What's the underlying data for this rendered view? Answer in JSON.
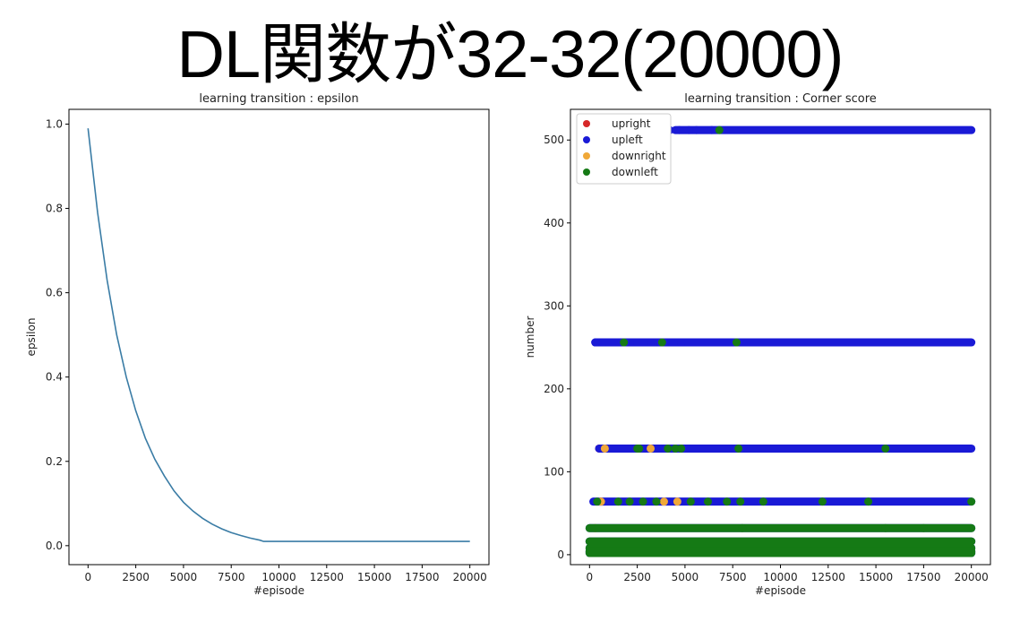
{
  "slide_title": "DL関数が32-32(20000)",
  "chart_data": [
    {
      "type": "line",
      "title": "learning transition : epsilon",
      "xlabel": "#episode",
      "ylabel": "epsilon",
      "xlim": [
        -1000,
        21000
      ],
      "ylim": [
        -0.045,
        1.035
      ],
      "xticks": [
        0,
        2500,
        5000,
        7500,
        10000,
        12500,
        15000,
        17500,
        20000
      ],
      "yticks": [
        0.0,
        0.2,
        0.4,
        0.6,
        0.8,
        1.0
      ],
      "ytick_labels": [
        "0.0",
        "0.2",
        "0.4",
        "0.6",
        "0.8",
        "1.0"
      ],
      "grid": false,
      "color": "#3a7ca5",
      "series": [
        {
          "x": [
            0,
            500,
            1000,
            1500,
            2000,
            2500,
            3000,
            3500,
            4000,
            4500,
            5000,
            5500,
            6000,
            6500,
            7000,
            7500,
            8000,
            8500,
            9000,
            9200,
            10000,
            12000,
            14000,
            16000,
            18000,
            20000
          ],
          "y": [
            0.99,
            0.79,
            0.63,
            0.5,
            0.4,
            0.32,
            0.255,
            0.205,
            0.165,
            0.13,
            0.103,
            0.082,
            0.065,
            0.051,
            0.04,
            0.031,
            0.024,
            0.018,
            0.013,
            0.01,
            0.01,
            0.01,
            0.01,
            0.01,
            0.01,
            0.01
          ]
        }
      ]
    },
    {
      "type": "scatter",
      "title": "learning transition : Corner score",
      "xlabel": "#episode",
      "ylabel": "number",
      "xlim": [
        -1000,
        21000
      ],
      "ylim": [
        -12,
        537
      ],
      "xticks": [
        0,
        2500,
        5000,
        7500,
        10000,
        12500,
        15000,
        17500,
        20000
      ],
      "yticks": [
        0,
        100,
        200,
        300,
        400,
        500
      ],
      "ytick_labels": [
        "0",
        "100",
        "200",
        "300",
        "400",
        "500"
      ],
      "grid": false,
      "legend_position": "top-left",
      "legend": [
        "upright",
        "upleft",
        "downright",
        "downleft"
      ],
      "series": [
        {
          "name": "upright",
          "color": "#d62728",
          "points": [
            [
              400,
              256
            ],
            [
              2200,
              256
            ],
            [
              500,
              128
            ],
            [
              600,
              64
            ],
            [
              300,
              32
            ],
            [
              800,
              16
            ],
            [
              1200,
              8
            ]
          ]
        },
        {
          "name": "upleft",
          "color": "#1a1ad6",
          "levels": [
            512,
            256,
            128,
            64,
            32,
            16,
            8,
            4,
            2
          ],
          "bands": [
            [
              4500,
              20000
            ],
            [
              300,
              20000
            ],
            [
              500,
              20000
            ],
            [
              200,
              20000
            ],
            [
              0,
              20000
            ],
            [
              0,
              20000
            ],
            [
              0,
              20000
            ],
            [
              0,
              20000
            ],
            [
              0,
              20000
            ]
          ],
          "points": [
            [
              3400,
              512
            ],
            [
              4200,
              512
            ],
            [
              4700,
              512
            ],
            [
              5200,
              512
            ],
            [
              5600,
              512
            ],
            [
              6400,
              512
            ],
            [
              300,
              256
            ],
            [
              700,
              256
            ],
            [
              1800,
              256
            ],
            [
              2500,
              256
            ],
            [
              3200,
              256
            ],
            [
              3700,
              256
            ],
            [
              4300,
              256
            ],
            [
              4800,
              256
            ],
            [
              600,
              128
            ],
            [
              2400,
              128
            ]
          ]
        },
        {
          "name": "downright",
          "color": "#f0a838",
          "points": [
            [
              800,
              128
            ],
            [
              3200,
              128
            ],
            [
              600,
              64
            ],
            [
              3900,
              64
            ],
            [
              4600,
              64
            ],
            [
              300,
              32
            ],
            [
              17900,
              8
            ]
          ]
        },
        {
          "name": "downleft",
          "color": "#157a15",
          "levels": [
            32,
            16,
            8,
            4,
            2
          ],
          "bands": [
            [
              0,
              20000
            ],
            [
              0,
              20000
            ],
            [
              0,
              20000
            ],
            [
              0,
              20000
            ],
            [
              0,
              20000
            ]
          ],
          "points": [
            [
              6800,
              512
            ],
            [
              1800,
              256
            ],
            [
              3800,
              256
            ],
            [
              7700,
              256
            ],
            [
              2500,
              128
            ],
            [
              2600,
              128
            ],
            [
              4100,
              128
            ],
            [
              4500,
              128
            ],
            [
              4800,
              128
            ],
            [
              7800,
              128
            ],
            [
              15500,
              128
            ],
            [
              400,
              64
            ],
            [
              1500,
              64
            ],
            [
              2100,
              64
            ],
            [
              2800,
              64
            ],
            [
              3500,
              64
            ],
            [
              5300,
              64
            ],
            [
              6200,
              64
            ],
            [
              7200,
              64
            ],
            [
              7900,
              64
            ],
            [
              9100,
              64
            ],
            [
              12200,
              64
            ],
            [
              14600,
              64
            ],
            [
              20000,
              64
            ],
            [
              8000,
              32
            ],
            [
              15500,
              32
            ],
            [
              17500,
              32
            ]
          ]
        }
      ]
    }
  ]
}
